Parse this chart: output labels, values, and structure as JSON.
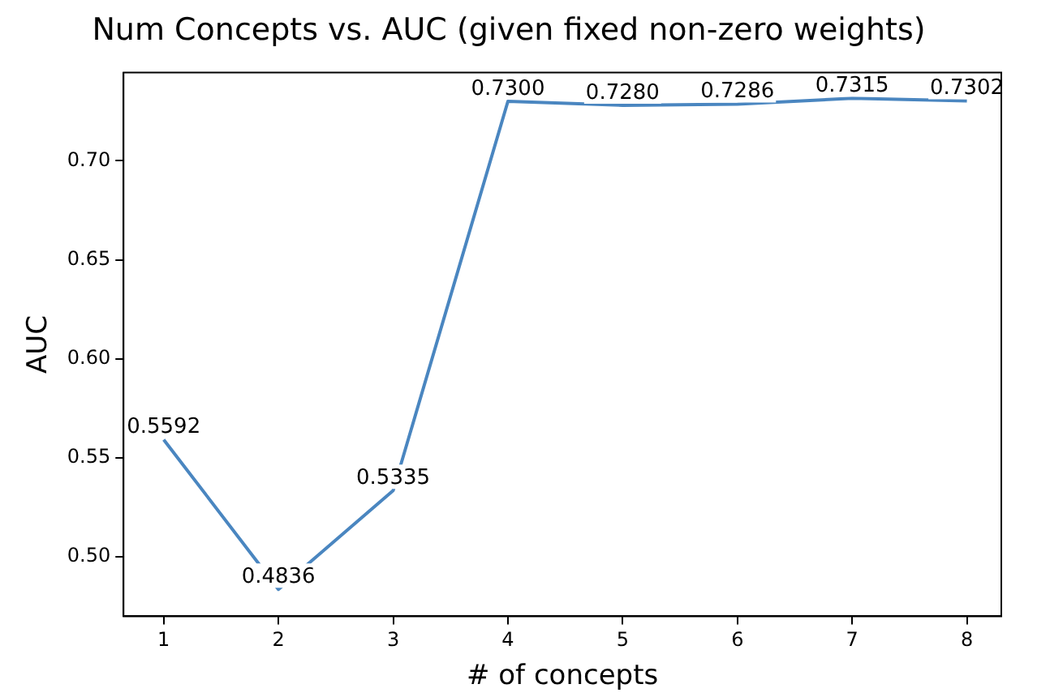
{
  "chart_data": {
    "type": "line",
    "title": "Num Concepts vs. AUC (given fixed non-zero weights)",
    "xlabel": "# of concepts",
    "ylabel": "AUC",
    "x": [
      1,
      2,
      3,
      4,
      5,
      6,
      7,
      8
    ],
    "series": [
      {
        "color": "#4a86c0",
        "values": [
          0.5592,
          0.4836,
          0.5335,
          0.73,
          0.728,
          0.7286,
          0.7315,
          0.7302
        ],
        "value_labels": [
          "0.5592",
          "0.4836",
          "0.5335",
          "0.7300",
          "0.7280",
          "0.7286",
          "0.7315",
          "0.7302"
        ]
      }
    ],
    "xlim": [
      0.65,
      8.3
    ],
    "xticks": [
      1,
      2,
      3,
      4,
      5,
      6,
      7,
      8
    ],
    "ylim": [
      0.47,
      0.7445
    ],
    "yticks": [
      {
        "value": 0.5,
        "label": "0.50"
      },
      {
        "value": 0.55,
        "label": "0.55"
      },
      {
        "value": 0.6,
        "label": "0.60"
      },
      {
        "value": 0.65,
        "label": "0.65"
      },
      {
        "value": 0.7,
        "label": "0.70"
      }
    ],
    "grid": false,
    "legend": false,
    "marker": "none",
    "line_style": "solid"
  }
}
